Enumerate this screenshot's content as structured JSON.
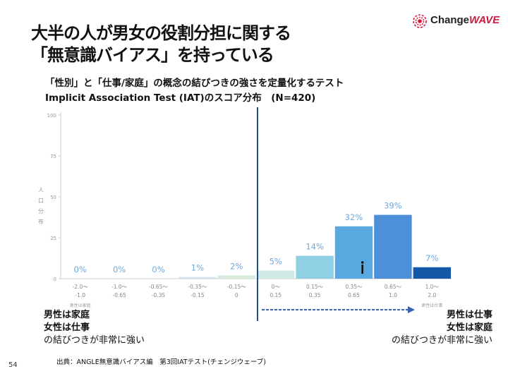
{
  "title": {
    "line1": "大半の人が男女の役割分担に関する",
    "line2": "「無意識バイアス」を持っている"
  },
  "logo": {
    "part1": "Change",
    "part2": "WAVE"
  },
  "subtitle": {
    "line1": "「性別」と「仕事/家庭」の概念の結びつきの強さを定量化するテスト",
    "line2": "Implicit Association Test (IAT)のスコア分布　(N=420)"
  },
  "chart_data": {
    "type": "bar",
    "ylabel": "人口分布",
    "ylim": [
      0,
      100
    ],
    "yticks": [
      0,
      25,
      50,
      75,
      100
    ],
    "categories": [
      [
        "-2.0～",
        "-1.0"
      ],
      [
        "-1.0～",
        "-0.65"
      ],
      [
        "-0.65～",
        "-0.35"
      ],
      [
        "-0.35～",
        "-0.15"
      ],
      [
        "-0.15～",
        "0"
      ],
      [
        "0～",
        "0.15"
      ],
      [
        "0.15～",
        "0.35"
      ],
      [
        "0.35～",
        "0.65"
      ],
      [
        "0.65～",
        "1.0"
      ],
      [
        "1.0～",
        "2.0"
      ]
    ],
    "values": [
      0,
      0,
      0,
      1,
      2,
      5,
      14,
      32,
      39,
      7
    ],
    "value_labels": [
      "0%",
      "0%",
      "0%",
      "1%",
      "2%",
      "5%",
      "14%",
      "32%",
      "39%",
      "7%"
    ],
    "bar_colors": [
      "#cfe0ee",
      "#cfe0ee",
      "#cfe0ee",
      "#cfe3ea",
      "#d5ead9",
      "#cfe9e4",
      "#8fd0e4",
      "#5aa8e0",
      "#4d8fd8",
      "#1558a8"
    ],
    "label_color": "#6fa8dc",
    "axis_end_left": "男性は家庭",
    "axis_end_right": "男性は仕事",
    "divider_color": "#1f4e8c"
  },
  "notes": {
    "left": {
      "line1": "男性は家庭",
      "line2": "女性は仕事",
      "line3": "の結びつきが非常に強い"
    },
    "right": {
      "line1": "男性は仕事",
      "line2": "女性は家庭",
      "line3": "の結びつきが非常に強い"
    }
  },
  "footer": "出典：ANGLE無意識バイアス編　第3回IATテスト(チェンジウェーブ)",
  "page_number": "54"
}
